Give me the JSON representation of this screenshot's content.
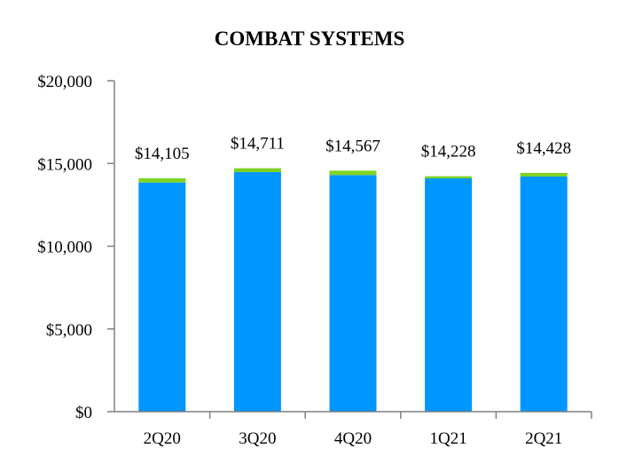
{
  "chart_data": {
    "type": "bar",
    "title": "COMBAT SYSTEMS",
    "categories": [
      "2Q20",
      "3Q20",
      "4Q20",
      "1Q21",
      "2Q21"
    ],
    "totals": [
      14105,
      14711,
      14567,
      14228,
      14428
    ],
    "data_labels": [
      "$14,105",
      "$14,711",
      "$14,567",
      "$14,228",
      "$14,428"
    ],
    "series": [
      {
        "values": [
          13850,
          14480,
          14300,
          14100,
          14210
        ],
        "color": "#0096ff"
      },
      {
        "values": [
          255,
          231,
          267,
          128,
          218
        ],
        "color": "#7ed321"
      }
    ],
    "ylim": [
      0,
      20000
    ],
    "yticks": [
      0,
      5000,
      10000,
      15000,
      20000
    ],
    "ytick_labels": [
      "$0",
      "$5,000",
      "$10,000",
      "$15,000",
      "$20,000"
    ],
    "axis_color": "#808080",
    "grid": false,
    "legend": "none"
  }
}
